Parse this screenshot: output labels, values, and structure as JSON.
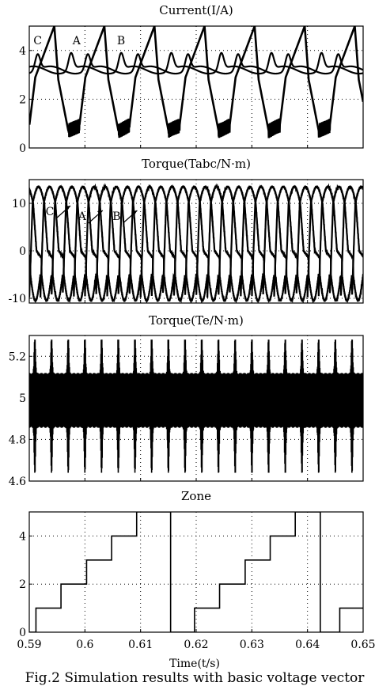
{
  "caption": "Fig.2  Simulation results with basic voltage vector",
  "x_axis": {
    "label": "Time(t/s)",
    "ticks": [
      "0.59",
      "0.6",
      "0.61",
      "0.62",
      "0.63",
      "0.64",
      "0.65"
    ]
  },
  "chart_data": [
    {
      "type": "line",
      "title": "Current(I/A)",
      "xlim": [
        0.59,
        0.65
      ],
      "ylim": [
        0,
        5
      ],
      "yticks": [
        0,
        2,
        4
      ],
      "ytick_labels": [
        "0",
        "2",
        "4"
      ],
      "grid": true,
      "annotations": [
        {
          "text": "C",
          "x": 0.5915,
          "y": 4.25
        },
        {
          "text": "A",
          "x": 0.5985,
          "y": 4.25
        },
        {
          "text": "B",
          "x": 0.6065,
          "y": 4.25
        }
      ],
      "series": [
        {
          "name": "A",
          "period": 0.009,
          "peak_time": 0.5975,
          "min": 2.65,
          "max": 3.9
        },
        {
          "name": "B",
          "period": 0.009,
          "peak_time": 0.6005,
          "min": 2.65,
          "max": 3.85
        },
        {
          "name": "C",
          "period": 0.009,
          "peak_time": 0.5945,
          "min": 0.0,
          "max": 5.0
        }
      ]
    },
    {
      "type": "line",
      "title": "Torque(Tabc/N·m)",
      "xlim": [
        0.59,
        0.65
      ],
      "ylim": [
        -11,
        15
      ],
      "yticks": [
        -10,
        0,
        10
      ],
      "ytick_labels": [
        "-10",
        "0",
        "10"
      ],
      "grid": true,
      "annotations": [
        {
          "text": "C",
          "x": 0.5937,
          "y": 7.5
        },
        {
          "text": "A",
          "x": 0.5995,
          "y": 6.5
        },
        {
          "text": "B",
          "x": 0.6057,
          "y": 6.5
        }
      ],
      "series": [
        {
          "name": "A",
          "period": 0.006,
          "min": -10.5,
          "max": 14
        },
        {
          "name": "B",
          "period": 0.006,
          "min": -10.5,
          "max": 14
        },
        {
          "name": "C",
          "period": 0.006,
          "min": -10.5,
          "max": 14
        }
      ]
    },
    {
      "type": "line",
      "title": "Torque(Te/N·m)",
      "xlim": [
        0.59,
        0.65
      ],
      "ylim": [
        4.6,
        5.3
      ],
      "yticks": [
        4.6,
        4.8,
        5,
        5.2
      ],
      "ytick_labels": [
        "4.6",
        "4.8",
        "5",
        "5.2"
      ],
      "grid": true,
      "series": [
        {
          "name": "Te",
          "mean": 5.0,
          "band": 0.1,
          "spike_period": 0.003,
          "spike_max": 5.28,
          "spike_min": 4.64
        }
      ]
    },
    {
      "type": "line",
      "title": "Zone",
      "xlim": [
        0.59,
        0.65
      ],
      "ylim": [
        0,
        5
      ],
      "yticks": [
        0,
        2,
        4
      ],
      "ytick_labels": [
        "0",
        "2",
        "4"
      ],
      "grid": true,
      "series": [
        {
          "name": "Zone",
          "step_x": [
            0.59,
            0.5912,
            0.5912,
            0.5957,
            0.5957,
            0.6003,
            0.6003,
            0.6048,
            0.6048,
            0.6093,
            0.6093,
            0.6154,
            0.6154,
            0.6197,
            0.6197,
            0.6242,
            0.6242,
            0.6288,
            0.6288,
            0.6333,
            0.6333,
            0.6378,
            0.6378,
            0.6423,
            0.6423,
            0.6458,
            0.6458,
            0.65
          ],
          "step_y": [
            0,
            0,
            1,
            1,
            2,
            2,
            3,
            3,
            4,
            4,
            5,
            5,
            0,
            0,
            1,
            1,
            2,
            2,
            3,
            3,
            4,
            4,
            5,
            5,
            0,
            0,
            1,
            1
          ]
        }
      ]
    }
  ]
}
